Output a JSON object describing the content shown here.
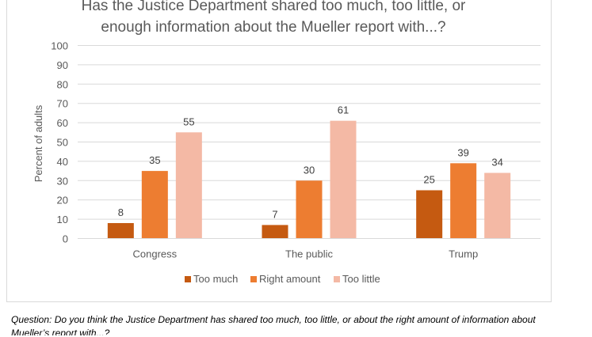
{
  "chart_data": {
    "type": "bar",
    "title": "Has the Justice Department shared too much, too little, or\nenough information about the Mueller report with...?",
    "ylabel": "Percent of adults",
    "xlabel": "",
    "categories": [
      "Congress",
      "The public",
      "Trump"
    ],
    "series": [
      {
        "name": "Too much",
        "values": [
          8,
          7,
          25
        ],
        "color": "#c55a11"
      },
      {
        "name": "Right amount",
        "values": [
          35,
          30,
          39
        ],
        "color": "#ed7d31"
      },
      {
        "name": "Too little",
        "values": [
          55,
          61,
          34
        ],
        "color": "#f4b9a5"
      }
    ],
    "ylim": [
      0,
      100
    ],
    "yticks": [
      "0",
      "10",
      "20",
      "30",
      "40",
      "50",
      "60",
      "70",
      "80",
      "90",
      "100"
    ],
    "grid": true,
    "legend": "bottom"
  },
  "caption": {
    "line1": "Question: Do you think the Justice Department has shared too much, too little, or about the right amount of information about",
    "line2": "Mueller’s report with...?"
  }
}
